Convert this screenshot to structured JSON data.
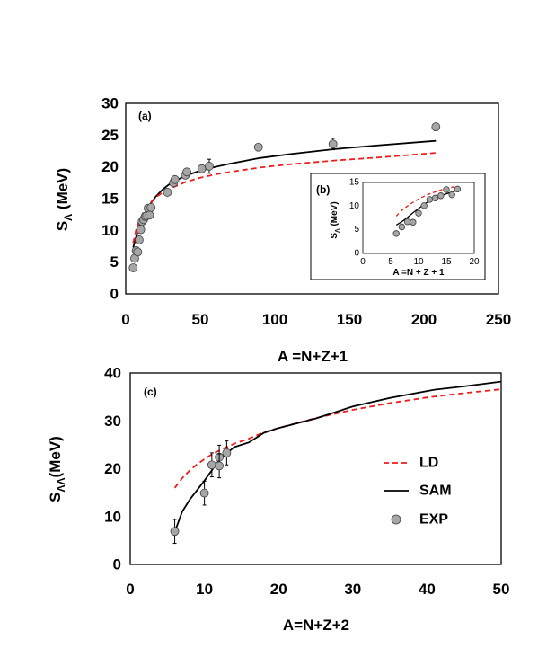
{
  "chart_data": [
    {
      "type": "scatter",
      "panel_label": "(a)",
      "xlabel": "A =N+Z+1",
      "ylabel": "S",
      "ylabel_sub": "Λ",
      "ylabel_unit": " (MeV)",
      "xlim": [
        0,
        250
      ],
      "ylim": [
        0,
        30
      ],
      "xticks": [
        0,
        50,
        100,
        150,
        200,
        250
      ],
      "yticks": [
        0,
        5,
        10,
        15,
        20,
        25,
        30
      ],
      "series": [
        {
          "name": "EXP",
          "kind": "points",
          "x": [
            5,
            6,
            7,
            8,
            9,
            10,
            11,
            12,
            13,
            14,
            15,
            16,
            17,
            28,
            32,
            33,
            40,
            41,
            51,
            56,
            89,
            139,
            208
          ],
          "y": [
            4.1,
            5.6,
            6.8,
            6.6,
            8.5,
            10.1,
            11.4,
            11.7,
            12.2,
            12.3,
            13.5,
            12.4,
            13.6,
            16.0,
            17.5,
            18.0,
            18.7,
            19.2,
            19.7,
            20.1,
            23.1,
            23.6,
            26.3
          ],
          "err": [
            0,
            0,
            0,
            0,
            0,
            0,
            0,
            0,
            0,
            0,
            0,
            0,
            0,
            0,
            0.5,
            0.5,
            0.5,
            0.5,
            0.6,
            1.1,
            0,
            0.9,
            0.6
          ]
        },
        {
          "name": "SAM",
          "kind": "line",
          "x": [
            5,
            7,
            9,
            12,
            16,
            20,
            25,
            30,
            40,
            50,
            60,
            70,
            90,
            110,
            140,
            170,
            208
          ],
          "y": [
            7.3,
            9.0,
            10.6,
            12.4,
            14.0,
            15.3,
            16.5,
            17.4,
            18.6,
            19.4,
            20.0,
            20.5,
            21.4,
            22.0,
            22.8,
            23.4,
            24.1
          ]
        },
        {
          "name": "LD",
          "kind": "dashed",
          "x": [
            5,
            7,
            9,
            12,
            16,
            20,
            25,
            30,
            40,
            50,
            60,
            70,
            90,
            110,
            140,
            170,
            208
          ],
          "y": [
            8.0,
            10.1,
            11.5,
            12.9,
            14.2,
            15.2,
            16.0,
            16.6,
            17.6,
            18.3,
            18.8,
            19.2,
            19.9,
            20.4,
            21.0,
            21.5,
            22.2
          ]
        }
      ]
    },
    {
      "type": "scatter",
      "panel_label": "(b)",
      "inset_of": "(a)",
      "xlabel": "A =N + Z + 1",
      "ylabel": "S",
      "ylabel_sub": "Λ",
      "ylabel_unit": " (MeV)",
      "xlim": [
        0,
        20
      ],
      "ylim": [
        0,
        15
      ],
      "xticks": [
        0,
        5,
        10,
        15,
        20
      ],
      "yticks": [
        0,
        5,
        10,
        15
      ],
      "series": [
        {
          "name": "EXP",
          "kind": "points",
          "x": [
            6,
            7,
            8,
            9,
            10,
            11,
            12,
            13,
            14,
            15,
            16,
            17
          ],
          "y": [
            4.2,
            5.6,
            6.7,
            6.6,
            8.5,
            10.1,
            11.4,
            11.7,
            12.2,
            13.5,
            12.4,
            13.6
          ]
        },
        {
          "name": "SAM",
          "kind": "line",
          "x": [
            6,
            7,
            8,
            9,
            10,
            11,
            12,
            13,
            14,
            15,
            16,
            17
          ],
          "y": [
            6.0,
            6.7,
            7.6,
            8.6,
            9.5,
            10.4,
            11.1,
            11.7,
            12.2,
            12.6,
            13.0,
            13.3
          ]
        },
        {
          "name": "LD",
          "kind": "dashed",
          "x": [
            6,
            7,
            8,
            9,
            10,
            11,
            12,
            13,
            14,
            15,
            16,
            17
          ],
          "y": [
            7.9,
            9.1,
            10.0,
            10.8,
            11.5,
            12.1,
            12.6,
            13.0,
            13.4,
            13.7,
            14.0,
            14.2
          ]
        }
      ]
    },
    {
      "type": "scatter",
      "panel_label": "(c)",
      "xlabel": "A=N+Z+2",
      "ylabel": "S",
      "ylabel_sub": "ΛΛ",
      "ylabel_unit": "(MeV)",
      "xlim": [
        0,
        50
      ],
      "ylim": [
        0,
        40
      ],
      "xticks": [
        0,
        10,
        20,
        30,
        40,
        50
      ],
      "yticks": [
        0,
        10,
        20,
        30,
        40
      ],
      "legend": {
        "position": "right",
        "entries": [
          "LD",
          "SAM",
          "EXP"
        ]
      },
      "series": [
        {
          "name": "LD",
          "kind": "dashed",
          "x": [
            6,
            7,
            8,
            9,
            10,
            11,
            12,
            13,
            14,
            16,
            18,
            20,
            25,
            30,
            35,
            40,
            45,
            50
          ],
          "y": [
            16.0,
            18.0,
            19.6,
            20.9,
            22.0,
            23.0,
            23.8,
            24.5,
            25.2,
            26.3,
            27.6,
            28.5,
            30.6,
            32.3,
            33.7,
            34.9,
            35.8,
            36.6
          ]
        },
        {
          "name": "SAM",
          "kind": "line",
          "x": [
            6,
            7,
            8,
            10,
            12,
            14,
            16,
            18,
            20,
            25,
            30,
            35,
            41,
            45,
            50
          ],
          "y": [
            6.8,
            11.0,
            13.5,
            17.5,
            21.8,
            24.5,
            25.5,
            27.5,
            28.5,
            30.5,
            33.0,
            34.8,
            36.5,
            37.2,
            38.2
          ]
        },
        {
          "name": "EXP",
          "kind": "points",
          "x": [
            6,
            10,
            11,
            12,
            12,
            13
          ],
          "y": [
            6.9,
            14.9,
            20.8,
            22.4,
            20.6,
            23.3
          ],
          "err": [
            2.5,
            2.5,
            2.5,
            2.5,
            2.5,
            2.5
          ]
        }
      ]
    }
  ],
  "colors": {
    "ld": "#ee1c1c",
    "sam": "#000000",
    "exp_fill": "#a6a6a6",
    "exp_stroke": "#404040"
  }
}
